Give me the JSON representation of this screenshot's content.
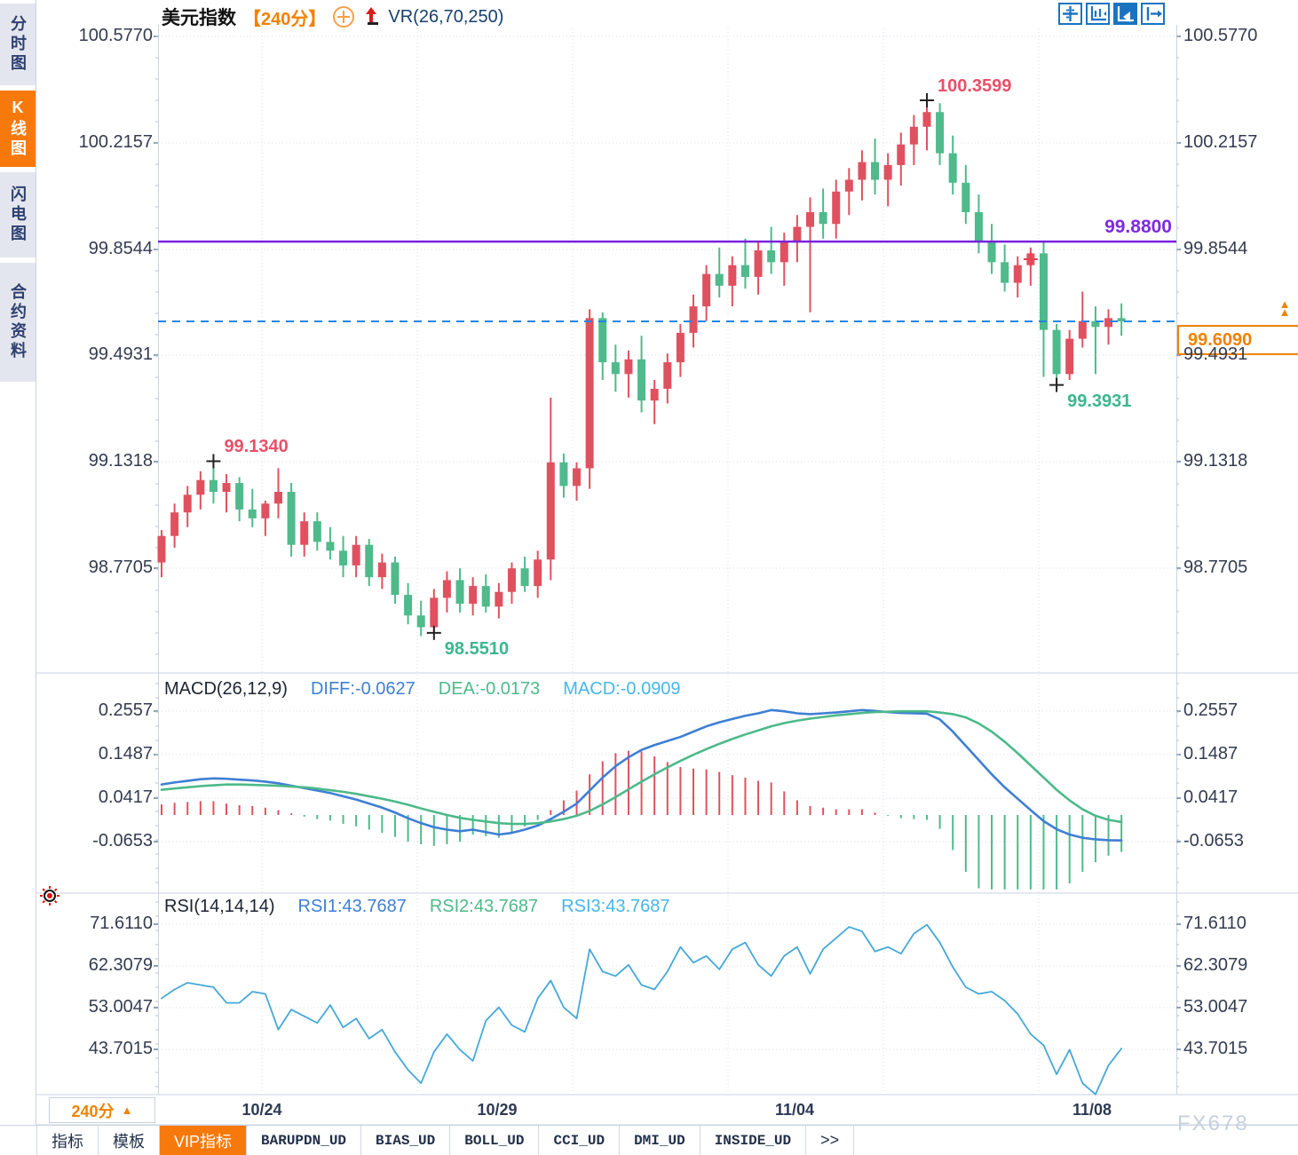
{
  "titlebar": {
    "symbol": "美元指数",
    "period": "【240分】",
    "indicator": "VR(26,70,250)",
    "icons": [
      "circle-plus-icon",
      "red-up-arrow-icon"
    ]
  },
  "toolbar": {
    "icons": [
      "crosshair-tool",
      "axis-adjust-tool",
      "axis-play-tool",
      "pan-right-tool"
    ],
    "selected": "axis-play-tool"
  },
  "sidebar": {
    "items": [
      {
        "label": "分时图",
        "selected": false
      },
      {
        "label": "K线图",
        "selected": true
      },
      {
        "label": "闪电图",
        "selected": false
      },
      {
        "label": "合约资料",
        "selected": false
      }
    ]
  },
  "main_axis_labels": [
    "100.5770",
    "100.2157",
    "99.8544",
    "99.4931",
    "99.1318",
    "98.7705"
  ],
  "macd_axis_labels": [
    "0.2557",
    "0.1487",
    "0.0417",
    "-0.0653"
  ],
  "rsi_axis_labels": [
    "71.6110",
    "62.3079",
    "53.0047",
    "43.7015"
  ],
  "x_axis_labels": [
    "10/24",
    "10/29",
    "11/04",
    "11/08"
  ],
  "macd_header": {
    "name": "MACD(26,12,9)",
    "diff_label": "DIFF:-0.0627",
    "dea_label": "DEA:-0.0173",
    "macd_label": "MACD:-0.0909"
  },
  "rsi_header": {
    "name": "RSI(14,14,14)",
    "rsi1_label": "RSI1:43.7687",
    "rsi2_label": "RSI2:43.7687",
    "rsi3_label": "RSI3:43.7687"
  },
  "period_badge": {
    "label": "240分",
    "arrow": "▲"
  },
  "price_tag": {
    "value": "99.6090"
  },
  "horizontal_line": {
    "price": 99.88,
    "label": "99.8800"
  },
  "watermark": "FX678",
  "colors": {
    "up": "#e0515f",
    "down": "#4fba8b",
    "purple_line": "#7a22dd",
    "dashed_line": "#1d86e8",
    "diff_line": "#3e7fd4",
    "dea_line": "#4db98a",
    "rsi_line": "#45a8d8",
    "grid": "#d8dde8",
    "border": "#c9d3e0",
    "accent_orange": "#f08200",
    "anno_red": "#e8506a",
    "anno_green": "#3cb690"
  },
  "chart_data": [
    {
      "type": "candlestick",
      "title": "美元指数 240分",
      "ylim": [
        98.42,
        100.577
      ],
      "y_ticks": [
        100.577,
        100.2157,
        99.8544,
        99.4931,
        99.1318,
        98.7705
      ],
      "x_ticks": [
        "10/24",
        "10/29",
        "11/04",
        "11/08"
      ],
      "current_price": 99.609,
      "support_line": 99.88,
      "ohlc": [
        [
          98.79,
          98.9,
          98.74,
          98.88
        ],
        [
          98.88,
          98.99,
          98.84,
          98.96
        ],
        [
          98.96,
          99.05,
          98.91,
          99.02
        ],
        [
          99.02,
          99.1,
          98.97,
          99.07
        ],
        [
          99.07,
          99.134,
          98.99,
          99.03
        ],
        [
          99.03,
          99.09,
          98.96,
          99.06
        ],
        [
          99.06,
          99.08,
          98.93,
          98.97
        ],
        [
          98.97,
          99.04,
          98.91,
          98.94
        ],
        [
          98.94,
          99.0,
          98.88,
          98.99
        ],
        [
          98.99,
          99.11,
          98.94,
          99.03
        ],
        [
          99.03,
          99.06,
          98.81,
          98.85
        ],
        [
          98.85,
          98.96,
          98.81,
          98.93
        ],
        [
          98.93,
          98.96,
          98.83,
          98.86
        ],
        [
          98.86,
          98.91,
          98.8,
          98.83
        ],
        [
          98.83,
          98.88,
          98.74,
          98.78
        ],
        [
          98.78,
          98.88,
          98.74,
          98.85
        ],
        [
          98.85,
          98.87,
          98.71,
          98.74
        ],
        [
          98.74,
          98.82,
          98.7,
          98.79
        ],
        [
          98.79,
          98.81,
          98.65,
          98.68
        ],
        [
          98.68,
          98.72,
          98.58,
          98.61
        ],
        [
          98.61,
          98.66,
          98.54,
          98.57
        ],
        [
          98.57,
          98.7,
          98.551,
          98.67
        ],
        [
          98.67,
          98.76,
          98.62,
          98.73
        ],
        [
          98.73,
          98.77,
          98.62,
          98.65
        ],
        [
          98.65,
          98.74,
          98.61,
          98.71
        ],
        [
          98.71,
          98.75,
          98.62,
          98.64
        ],
        [
          98.64,
          98.72,
          98.6,
          98.69
        ],
        [
          98.69,
          98.79,
          98.65,
          98.77
        ],
        [
          98.77,
          98.81,
          98.69,
          98.71
        ],
        [
          98.71,
          98.83,
          98.67,
          98.8
        ],
        [
          98.8,
          99.35,
          98.73,
          99.13
        ],
        [
          99.13,
          99.16,
          99.01,
          99.05
        ],
        [
          99.05,
          99.13,
          99.0,
          99.11
        ],
        [
          99.11,
          99.65,
          99.04,
          99.62
        ],
        [
          99.62,
          99.64,
          99.41,
          99.47
        ],
        [
          99.47,
          99.53,
          99.37,
          99.43
        ],
        [
          99.43,
          99.51,
          99.35,
          99.48
        ],
        [
          99.48,
          99.56,
          99.3,
          99.34
        ],
        [
          99.34,
          99.41,
          99.26,
          99.38
        ],
        [
          99.38,
          99.5,
          99.33,
          99.47
        ],
        [
          99.47,
          99.6,
          99.42,
          99.57
        ],
        [
          99.57,
          99.7,
          99.52,
          99.66
        ],
        [
          99.66,
          99.8,
          99.61,
          99.77
        ],
        [
          99.77,
          99.86,
          99.69,
          99.73
        ],
        [
          99.73,
          99.83,
          99.66,
          99.8
        ],
        [
          99.8,
          99.89,
          99.72,
          99.76
        ],
        [
          99.76,
          99.88,
          99.7,
          99.85
        ],
        [
          99.85,
          99.93,
          99.77,
          99.81
        ],
        [
          99.81,
          99.91,
          99.73,
          99.88
        ],
        [
          99.88,
          99.97,
          99.81,
          99.93
        ],
        [
          99.93,
          100.03,
          99.64,
          99.98
        ],
        [
          99.98,
          100.06,
          99.89,
          99.94
        ],
        [
          99.94,
          100.09,
          99.89,
          100.05
        ],
        [
          100.05,
          100.13,
          99.97,
          100.09
        ],
        [
          100.09,
          100.19,
          100.02,
          100.15
        ],
        [
          100.15,
          100.23,
          100.04,
          100.09
        ],
        [
          100.09,
          100.18,
          100.0,
          100.14
        ],
        [
          100.14,
          100.25,
          100.07,
          100.21
        ],
        [
          100.21,
          100.31,
          100.14,
          100.27
        ],
        [
          100.27,
          100.3599,
          100.19,
          100.32
        ],
        [
          100.32,
          100.35,
          100.14,
          100.18
        ],
        [
          100.18,
          100.24,
          100.04,
          100.08
        ],
        [
          100.08,
          100.14,
          99.94,
          99.98
        ],
        [
          99.98,
          100.04,
          99.84,
          99.88
        ],
        [
          99.88,
          99.94,
          99.77,
          99.81
        ],
        [
          99.81,
          99.87,
          99.71,
          99.74
        ],
        [
          99.74,
          99.83,
          99.69,
          99.8
        ],
        [
          99.8,
          99.86,
          99.73,
          99.84
        ],
        [
          99.84,
          99.88,
          99.42,
          99.58
        ],
        [
          99.58,
          99.6,
          99.3931,
          99.43
        ],
        [
          99.43,
          99.58,
          99.41,
          99.55
        ],
        [
          99.55,
          99.71,
          99.52,
          99.61
        ],
        [
          99.61,
          99.66,
          99.43,
          99.59
        ],
        [
          99.59,
          99.65,
          99.53,
          99.62
        ],
        [
          99.62,
          99.67,
          99.56,
          99.609
        ]
      ],
      "annotations": [
        {
          "text": "99.1340",
          "bar": 4,
          "price": 99.134,
          "color": "#e8506a",
          "placement": "above"
        },
        {
          "text": "98.5510",
          "bar": 21,
          "price": 98.551,
          "color": "#3cb690",
          "placement": "below"
        },
        {
          "text": "100.3599",
          "bar": 59,
          "price": 100.3599,
          "color": "#e8506a",
          "placement": "above"
        },
        {
          "text": "99.3931",
          "bar": 69,
          "price": 99.3931,
          "color": "#3cb690",
          "placement": "below"
        },
        {
          "text": "",
          "bar": 67,
          "price": 99.82,
          "color": "#e84050",
          "placement": "mark"
        }
      ]
    },
    {
      "type": "macd",
      "params": "MACD(26,12,9)",
      "last_values": {
        "diff": -0.0627,
        "dea": -0.0173,
        "macd": -0.0909
      },
      "y_ticks": [
        0.2557,
        0.1487,
        0.0417,
        -0.0653
      ],
      "diff": [
        0.075,
        0.08,
        0.084,
        0.088,
        0.09,
        0.089,
        0.087,
        0.085,
        0.082,
        0.078,
        0.072,
        0.066,
        0.06,
        0.054,
        0.046,
        0.038,
        0.028,
        0.018,
        0.006,
        -0.008,
        -0.02,
        -0.03,
        -0.036,
        -0.04,
        -0.036,
        -0.042,
        -0.048,
        -0.044,
        -0.036,
        -0.026,
        -0.01,
        0.008,
        0.028,
        0.06,
        0.092,
        0.12,
        0.142,
        0.16,
        0.172,
        0.182,
        0.192,
        0.205,
        0.218,
        0.228,
        0.236,
        0.244,
        0.25,
        0.258,
        0.255,
        0.25,
        0.248,
        0.25,
        0.252,
        0.255,
        0.258,
        0.256,
        0.253,
        0.251,
        0.25,
        0.249,
        0.235,
        0.205,
        0.17,
        0.135,
        0.1,
        0.068,
        0.04,
        0.012,
        -0.015,
        -0.035,
        -0.048,
        -0.056,
        -0.06,
        -0.062,
        -0.0627
      ],
      "dea": [
        0.062,
        0.065,
        0.068,
        0.071,
        0.073,
        0.075,
        0.075,
        0.074,
        0.073,
        0.072,
        0.07,
        0.068,
        0.065,
        0.061,
        0.057,
        0.052,
        0.046,
        0.04,
        0.033,
        0.025,
        0.016,
        0.008,
        0.0,
        -0.007,
        -0.012,
        -0.016,
        -0.02,
        -0.022,
        -0.022,
        -0.02,
        -0.016,
        -0.01,
        -0.002,
        0.01,
        0.026,
        0.044,
        0.063,
        0.082,
        0.1,
        0.117,
        0.133,
        0.148,
        0.162,
        0.175,
        0.187,
        0.198,
        0.208,
        0.218,
        0.226,
        0.232,
        0.237,
        0.241,
        0.245,
        0.248,
        0.251,
        0.253,
        0.254,
        0.255,
        0.255,
        0.255,
        0.252,
        0.248,
        0.24,
        0.225,
        0.205,
        0.18,
        0.152,
        0.122,
        0.092,
        0.062,
        0.036,
        0.014,
        -0.002,
        -0.012,
        -0.0173
      ]
    },
    {
      "type": "line",
      "params": "RSI(14,14,14)",
      "last_value": 43.7687,
      "y_ticks": [
        71.611,
        62.3079,
        53.0047,
        43.7015
      ],
      "rsi": [
        55.0,
        57.0,
        58.5,
        58.0,
        57.5,
        54.0,
        54.0,
        56.5,
        56.0,
        48.0,
        52.5,
        51.0,
        49.5,
        53.5,
        48.5,
        50.5,
        46.0,
        48.0,
        43.0,
        39.0,
        36.0,
        43.0,
        47.0,
        43.5,
        41.0,
        50.0,
        53.0,
        49.0,
        47.5,
        55.0,
        59.0,
        53.0,
        50.5,
        66.0,
        61.0,
        60.0,
        62.5,
        58.0,
        57.0,
        61.0,
        66.5,
        63.0,
        64.5,
        61.5,
        66.0,
        67.5,
        62.5,
        60.0,
        64.5,
        66.5,
        60.5,
        66.0,
        68.5,
        71.0,
        70.0,
        65.5,
        66.5,
        65.0,
        69.5,
        71.5,
        67.5,
        62.0,
        57.5,
        56.0,
        56.5,
        54.5,
        51.5,
        47.0,
        44.5,
        38.0,
        43.5,
        36.0,
        33.5,
        40.0,
        43.7687
      ]
    }
  ],
  "bottom_tabs": [
    {
      "label": "指标",
      "selected": false,
      "mono": false
    },
    {
      "label": "模板",
      "selected": false,
      "mono": false
    },
    {
      "label": "VIP指标",
      "selected": true,
      "mono": false
    },
    {
      "label": "BARUPDN_UD",
      "selected": false,
      "mono": true
    },
    {
      "label": "BIAS_UD",
      "selected": false,
      "mono": true
    },
    {
      "label": "BOLL_UD",
      "selected": false,
      "mono": true
    },
    {
      "label": "CCI_UD",
      "selected": false,
      "mono": true
    },
    {
      "label": "DMI_UD",
      "selected": false,
      "mono": true
    },
    {
      "label": "INSIDE_UD",
      "selected": false,
      "mono": true
    },
    {
      "label": ">>",
      "selected": false,
      "mono": false
    }
  ]
}
